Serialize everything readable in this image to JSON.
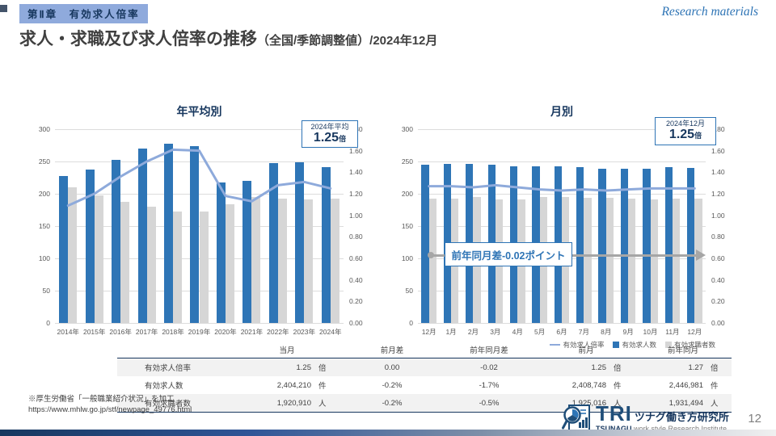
{
  "page": {
    "chapter_tag": "第Ⅱ章　有効求人倍率",
    "corner_note": "Research materials",
    "title_main": "求人・求職及び求人倍率の推移",
    "title_sub": "（全国/季節調整値）/2024年12月",
    "page_number": "12"
  },
  "colors": {
    "bar_blue": "#2E75B6",
    "bar_gray": "#D6D6D6",
    "ratio_line": "#8EAADB",
    "accent_navy": "#17375E",
    "accent_blue": "#2E74B5",
    "arrow_gray": "#A6A6A6"
  },
  "chart_data": [
    {
      "type": "bar",
      "title": "年平均別",
      "categories": [
        "2014年",
        "2015年",
        "2016年",
        "2017年",
        "2018年",
        "2019年",
        "2020年",
        "2021年",
        "2022年",
        "2023年",
        "2024年"
      ],
      "series": [
        {
          "name": "有効求人数",
          "type": "bar",
          "color": "#2E75B6",
          "values": [
            228,
            238,
            253,
            270,
            278,
            274,
            217,
            220,
            247,
            249,
            241
          ]
        },
        {
          "name": "有効求職者数",
          "type": "bar",
          "color": "#D6D6D6",
          "values": [
            210,
            198,
            188,
            180,
            173,
            172,
            184,
            195,
            193,
            191,
            192
          ]
        },
        {
          "name": "有効求人倍率",
          "type": "line",
          "color": "#8EAADB",
          "axis": "right",
          "values": [
            1.09,
            1.2,
            1.36,
            1.5,
            1.61,
            1.6,
            1.18,
            1.13,
            1.28,
            1.31,
            1.25
          ]
        }
      ],
      "left_axis": {
        "min": 0,
        "max": 300,
        "step": 50
      },
      "right_axis": {
        "min": 0,
        "max": 1.8,
        "step": 0.2
      },
      "grid": true,
      "callout": {
        "line1": "2024年平均",
        "value": "1.25",
        "unit": "倍"
      }
    },
    {
      "type": "bar",
      "title": "月別",
      "categories": [
        "12月",
        "1月",
        "2月",
        "3月",
        "4月",
        "5月",
        "6月",
        "7月",
        "8月",
        "9月",
        "10月",
        "11月",
        "12月"
      ],
      "series": [
        {
          "name": "有効求人数",
          "type": "bar",
          "color": "#2E75B6",
          "values": [
            245,
            246,
            246,
            245,
            242,
            242,
            242,
            241,
            239,
            239,
            239,
            241,
            240
          ]
        },
        {
          "name": "有効求職者数",
          "type": "bar",
          "color": "#D6D6D6",
          "values": [
            193,
            193,
            195,
            191,
            191,
            195,
            195,
            194,
            194,
            192,
            191,
            193,
            192
          ]
        },
        {
          "name": "有効求人倍率",
          "type": "line",
          "color": "#8EAADB",
          "axis": "right",
          "values": [
            1.27,
            1.27,
            1.26,
            1.28,
            1.26,
            1.24,
            1.23,
            1.24,
            1.23,
            1.24,
            1.25,
            1.25,
            1.25
          ]
        }
      ],
      "left_axis": {
        "min": 0,
        "max": 300,
        "step": 50
      },
      "right_axis": {
        "min": 0,
        "max": 1.8,
        "step": 0.2
      },
      "grid": true,
      "callout": {
        "line1": "2024年12月",
        "value": "1.25",
        "unit": "倍"
      },
      "annotation": "前年同月差-0.02ポイント",
      "legend_position": "bottom-right"
    }
  ],
  "table": {
    "headers": [
      "当月",
      "前月差",
      "前年同月差",
      "前月",
      "前年同月"
    ],
    "rows": [
      {
        "label": "有効求人倍率",
        "current": "1.25",
        "current_unit": "倍",
        "mom_diff": "0.00",
        "yoy_diff": "-0.02",
        "prev": "1.25",
        "prev_unit": "倍",
        "prev_year": "1.27",
        "prev_year_unit": "倍"
      },
      {
        "label": "有効求人数",
        "current": "2,404,210",
        "current_unit": "件",
        "mom_diff": "-0.2%",
        "yoy_diff": "-1.7%",
        "prev": "2,408,748",
        "prev_unit": "件",
        "prev_year": "2,446,981",
        "prev_year_unit": "件"
      },
      {
        "label": "有効求職者数",
        "current": "1,920,910",
        "current_unit": "人",
        "mom_diff": "-0.2%",
        "yoy_diff": "-0.5%",
        "prev": "1,925,016",
        "prev_unit": "人",
        "prev_year": "1,931,494",
        "prev_year_unit": "人"
      }
    ]
  },
  "footnote": {
    "line1": "※厚生労働省「一般職業紹介状況」を加工",
    "line2": "https://www.mhlw.go.jp/stf/newpage_49776.html"
  },
  "logo": {
    "tri": "TRI",
    "jp": "ツナグ働き方研究所",
    "en_bold": "TSUNAGU",
    "en_rest": " work style Research Institute"
  }
}
